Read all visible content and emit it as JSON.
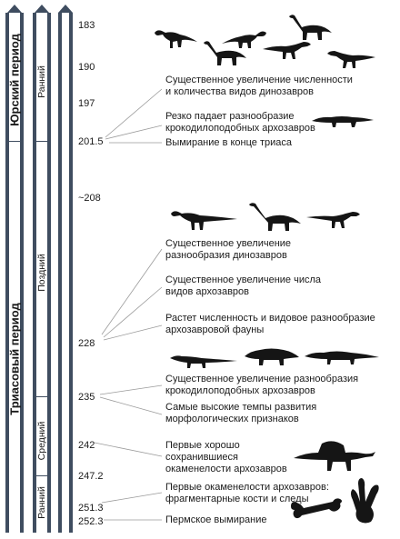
{
  "periods": [
    {
      "label": "Юрский период"
    },
    {
      "label": "Триасовый период"
    }
  ],
  "epochs": [
    {
      "label": "Ранний"
    },
    {
      "label": "Поздний"
    },
    {
      "label": "Средний"
    },
    {
      "label": "Ранний"
    }
  ],
  "ticks": [
    {
      "label": "183"
    },
    {
      "label": "190"
    },
    {
      "label": "197"
    },
    {
      "label": "201.5"
    },
    {
      "label": "~208"
    },
    {
      "label": "228"
    },
    {
      "label": "235"
    },
    {
      "label": "242"
    },
    {
      "label": "247.2"
    },
    {
      "label": "251.3"
    },
    {
      "label": "252.3"
    }
  ],
  "events": [
    {
      "line1": "Существенное увеличение численности",
      "line2": "и количества видов динозавров"
    },
    {
      "line1": "Резко падает разнообразие",
      "line2": "крокодилоподобных архозавров"
    },
    {
      "line1": "Вымирание в конце триаса",
      "line2": ""
    },
    {
      "line1": "Существенное увеличение",
      "line2": "разнообразия динозавров"
    },
    {
      "line1": "Существенное увеличение числа",
      "line2": "видов архозавров"
    },
    {
      "line1": "Растет численность и видовое разнообразие",
      "line2": "архозавровой фауны"
    },
    {
      "line1": "Существенное увеличение разнообразия",
      "line2": "крокодилоподобных архозавров"
    },
    {
      "line1": "Самые высокие темпы развития",
      "line2": "морфологических признаков"
    },
    {
      "line1": "Первые хорошо",
      "line2": "сохранившиеся",
      "line3": "окаменелости архозавров"
    },
    {
      "line1": "Первые окаменелости архозавров:",
      "line2": "фрагментарные кости и следы"
    },
    {
      "line1": "Пермское вымирание",
      "line2": ""
    }
  ],
  "icons": {
    "dinosaur": "dinosaur-silhouette-icon",
    "sauropod": "sauropod-silhouette-icon",
    "crocodile": "crocodile-silhouette-icon",
    "spinosaur": "spinosaur-silhouette-icon",
    "bone": "bone-icon",
    "footprint": "footprint-icon"
  },
  "colors": {
    "column": "#3f4d60",
    "leader": "#9a9a9a",
    "silhouette": "#151515"
  }
}
